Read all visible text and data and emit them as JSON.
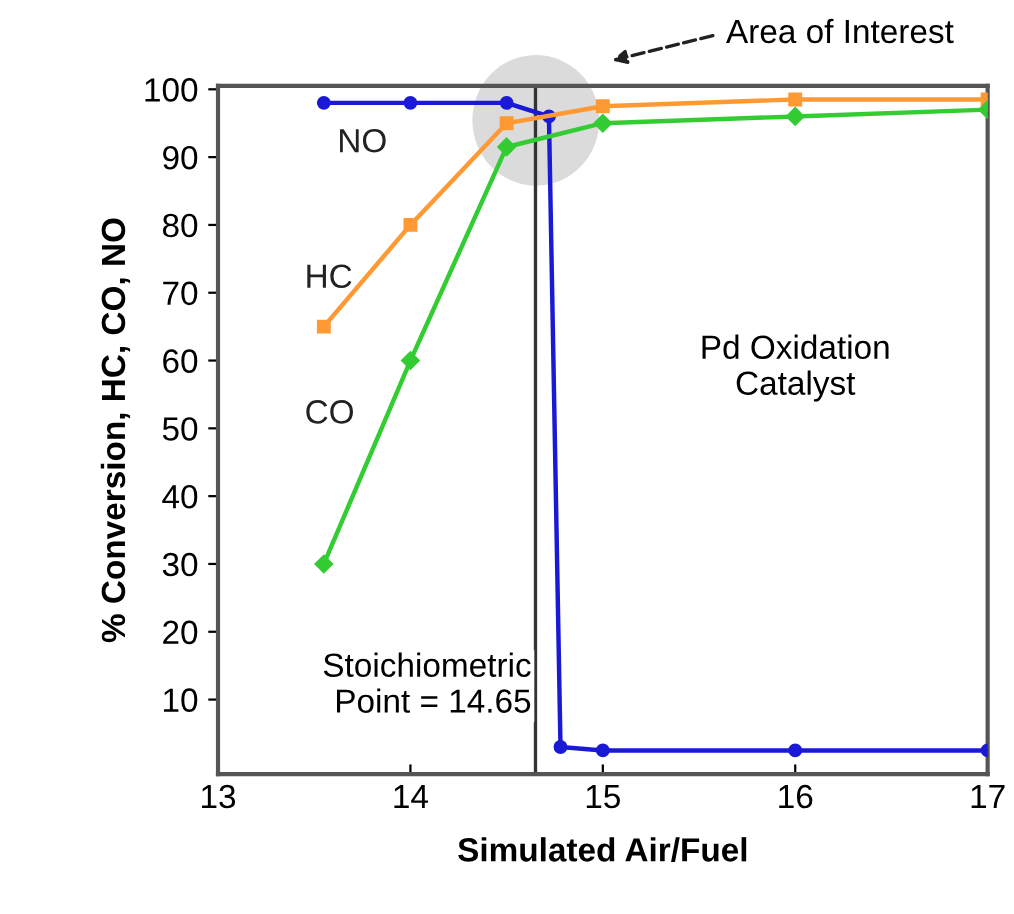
{
  "chart_data": {
    "type": "line",
    "xlabel": "Simulated Air/Fuel",
    "ylabel": "% Conversion, HC, CO, NO",
    "xlim": [
      13,
      17
    ],
    "xticks": [
      13,
      14,
      15,
      16,
      17
    ],
    "ylim": [
      -1,
      100.5
    ],
    "yticks": [
      10,
      20,
      30,
      40,
      50,
      60,
      70,
      80,
      90,
      100
    ],
    "grid": false,
    "legend": false,
    "line_style": "solid",
    "series": [
      {
        "name": "NO",
        "color": "#1a1ad6",
        "marker": "circle",
        "x": [
          13.55,
          14,
          14.5,
          14.72,
          14.78,
          15,
          16,
          17
        ],
        "values": [
          98,
          98,
          98,
          96,
          3,
          2.5,
          2.5,
          2.5
        ]
      },
      {
        "name": "HC",
        "color": "#ff9933",
        "marker": "square",
        "x": [
          13.55,
          14,
          14.5,
          15,
          16,
          17
        ],
        "values": [
          65,
          80,
          95,
          97.5,
          98.5,
          98.5
        ]
      },
      {
        "name": "CO",
        "color": "#33cc33",
        "marker": "diamond",
        "x": [
          13.55,
          14,
          14.5,
          15,
          16,
          17
        ],
        "values": [
          30,
          60,
          91.5,
          95,
          96,
          97
        ]
      }
    ],
    "ref_lines": [
      {
        "axis": "x",
        "value": 14.65,
        "label": "Stoichiometric\nPoint = 14.65",
        "color": "#333333"
      }
    ],
    "annotations": [
      "Area of Interest",
      "Pd Oxidation\nCatalyst"
    ]
  }
}
